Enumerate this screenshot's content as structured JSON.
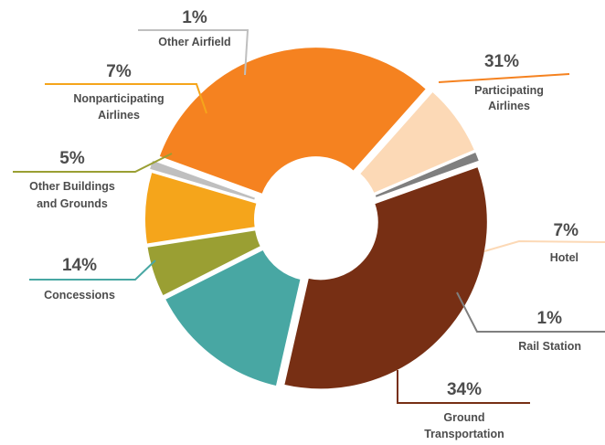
{
  "chart_data": {
    "type": "pie",
    "title": "",
    "donut": true,
    "legend": "none",
    "slices": [
      {
        "label": "Participating Airlines",
        "label_lines": [
          "Participating",
          "Airlines"
        ],
        "value": 31,
        "value_label": "31%",
        "color": "#f58220"
      },
      {
        "label": "Hotel",
        "label_lines": [
          "Hotel"
        ],
        "value": 7,
        "value_label": "7%",
        "color": "#fcd9b6"
      },
      {
        "label": "Rail Station",
        "label_lines": [
          "Rail Station"
        ],
        "value": 1,
        "value_label": "1%",
        "color": "#7f7f7f"
      },
      {
        "label": "Ground Transportation",
        "label_lines": [
          "Ground",
          "Transportation"
        ],
        "value": 34,
        "value_label": "34%",
        "color": "#772f14"
      },
      {
        "label": "Concessions",
        "label_lines": [
          "Concessions"
        ],
        "value": 14,
        "value_label": "14%",
        "color": "#48a7a3"
      },
      {
        "label": "Other Buildings and Grounds",
        "label_lines": [
          "Other Buildings",
          "and Grounds"
        ],
        "value": 5,
        "value_label": "5%",
        "color": "#9a9f33"
      },
      {
        "label": "Nonparticipating Airlines",
        "label_lines": [
          "Nonparticipating",
          "Airlines"
        ],
        "value": 7,
        "value_label": "7%",
        "color": "#f5a51b"
      },
      {
        "label": "Other Airfield",
        "label_lines": [
          "Other Airfield"
        ],
        "value": 1,
        "value_label": "1%",
        "color": "#bfbfbf"
      }
    ]
  }
}
